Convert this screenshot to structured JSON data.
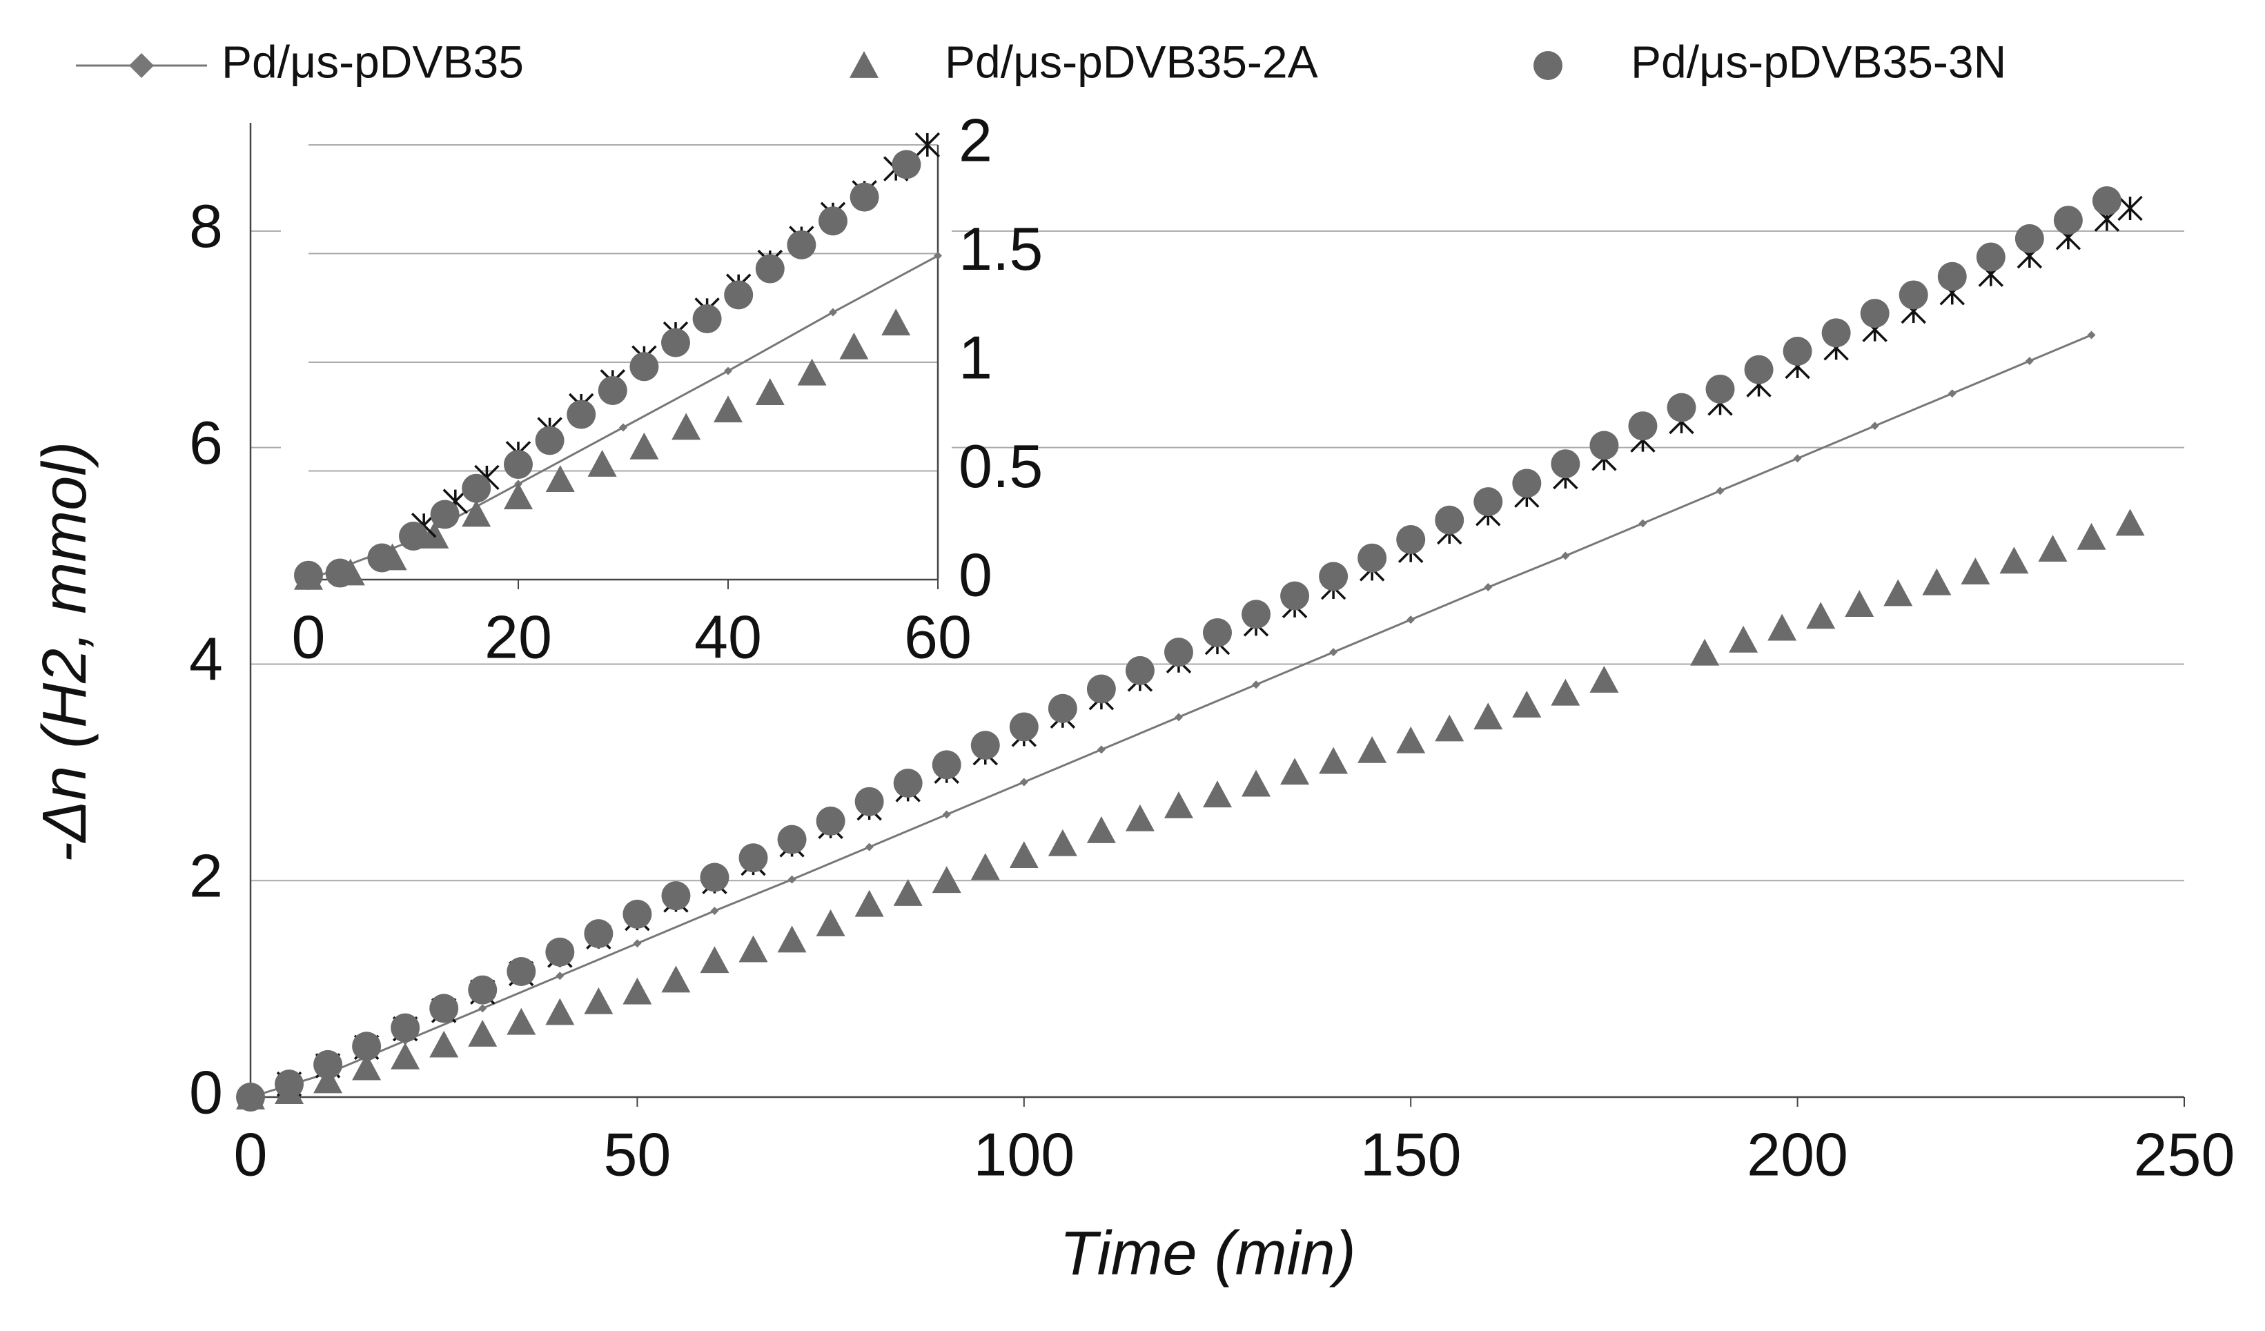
{
  "chart_data": [
    {
      "type": "scatter",
      "xlabel": "Time (min)",
      "ylabel": "-Δn (H2, mmol)",
      "xlim": [
        0,
        250
      ],
      "ylim": [
        0,
        9
      ],
      "xticks": [
        0,
        50,
        100,
        150,
        200,
        250
      ],
      "yticks": [
        0,
        2,
        4,
        6,
        8
      ],
      "grid": true,
      "y_side": "left",
      "legend": "top",
      "series": [
        {
          "name": "Pd/μs-pDVB35",
          "color": "#777777",
          "marker": "line",
          "x": [
            0,
            10,
            20,
            30,
            40,
            50,
            60,
            70,
            80,
            90,
            100,
            110,
            120,
            130,
            140,
            150,
            160,
            170,
            180,
            190,
            200,
            210,
            220,
            230,
            238
          ],
          "values": [
            0,
            0.22,
            0.52,
            0.82,
            1.12,
            1.42,
            1.72,
            2.01,
            2.31,
            2.61,
            2.91,
            3.21,
            3.51,
            3.81,
            4.11,
            4.41,
            4.71,
            5.0,
            5.3,
            5.6,
            5.9,
            6.2,
            6.5,
            6.8,
            7.04
          ]
        },
        {
          "name": "Pd/μs-pDVB35-2A",
          "color": "#6b6b6b",
          "marker": "triangle",
          "x": [
            0,
            5,
            10,
            15,
            20,
            25,
            30,
            35,
            40,
            45,
            50,
            55,
            60,
            65,
            70,
            75,
            80,
            85,
            90,
            95,
            100,
            105,
            110,
            115,
            120,
            125,
            130,
            135,
            140,
            145,
            150,
            155,
            160,
            165,
            170,
            175,
            188,
            193,
            198,
            203,
            208,
            213,
            218,
            223,
            228,
            233,
            238,
            243
          ],
          "values": [
            0,
            0.05,
            0.15,
            0.27,
            0.37,
            0.48,
            0.58,
            0.69,
            0.78,
            0.88,
            0.97,
            1.08,
            1.26,
            1.36,
            1.45,
            1.6,
            1.78,
            1.88,
            2.0,
            2.12,
            2.23,
            2.34,
            2.46,
            2.57,
            2.69,
            2.79,
            2.89,
            3.0,
            3.1,
            3.2,
            3.29,
            3.4,
            3.51,
            3.62,
            3.73,
            3.85,
            4.1,
            4.22,
            4.33,
            4.44,
            4.55,
            4.65,
            4.75,
            4.85,
            4.95,
            5.06,
            5.17,
            5.3
          ]
        },
        {
          "color": "#111111",
          "marker": "asterisk",
          "x": [
            5,
            10,
            15,
            20,
            25,
            30,
            35,
            40,
            45,
            50,
            55,
            60,
            65,
            70,
            75,
            80,
            85,
            90,
            95,
            100,
            105,
            110,
            115,
            120,
            125,
            130,
            135,
            140,
            145,
            150,
            155,
            160,
            165,
            170,
            175,
            180,
            185,
            190,
            195,
            200,
            205,
            210,
            215,
            220,
            225,
            230,
            235,
            240,
            243
          ],
          "values": [
            0.12,
            0.29,
            0.46,
            0.63,
            0.8,
            0.97,
            1.14,
            1.31,
            1.48,
            1.65,
            1.82,
            1.99,
            2.16,
            2.33,
            2.5,
            2.67,
            2.84,
            3.01,
            3.18,
            3.35,
            3.52,
            3.69,
            3.86,
            4.03,
            4.2,
            4.37,
            4.54,
            4.71,
            4.88,
            5.05,
            5.22,
            5.39,
            5.56,
            5.73,
            5.9,
            6.07,
            6.24,
            6.41,
            6.58,
            6.75,
            6.92,
            7.09,
            7.26,
            7.43,
            7.6,
            7.77,
            7.94,
            8.11,
            8.21
          ]
        },
        {
          "name": "Pd/μs-pDVB35-3N",
          "color": "#6b6b6b",
          "marker": "circle",
          "x": [
            0,
            5,
            10,
            15,
            20,
            25,
            30,
            35,
            40,
            45,
            50,
            55,
            60,
            65,
            70,
            75,
            80,
            85,
            90,
            95,
            100,
            105,
            110,
            115,
            120,
            125,
            130,
            135,
            140,
            145,
            150,
            155,
            160,
            165,
            170,
            175,
            180,
            185,
            190,
            195,
            200,
            205,
            210,
            215,
            220,
            225,
            230,
            235,
            240
          ],
          "values": [
            0,
            0.12,
            0.3,
            0.47,
            0.64,
            0.82,
            0.99,
            1.16,
            1.34,
            1.51,
            1.69,
            1.86,
            2.03,
            2.21,
            2.38,
            2.55,
            2.73,
            2.9,
            3.07,
            3.25,
            3.42,
            3.59,
            3.77,
            3.94,
            4.11,
            4.29,
            4.46,
            4.63,
            4.81,
            4.98,
            5.15,
            5.33,
            5.5,
            5.67,
            5.85,
            6.02,
            6.2,
            6.37,
            6.54,
            6.72,
            6.89,
            7.06,
            7.24,
            7.41,
            7.58,
            7.76,
            7.93,
            8.1,
            8.28
          ]
        }
      ]
    },
    {
      "type": "scatter",
      "xlim": [
        0,
        60
      ],
      "ylim": [
        0,
        2
      ],
      "xticks": [
        0,
        20,
        40,
        60
      ],
      "yticks": [
        0,
        0.5,
        1,
        1.5,
        2
      ],
      "grid": true,
      "y_side": "right",
      "series": [
        {
          "color": "#777777",
          "marker": "line",
          "x": [
            0,
            10,
            20,
            30,
            40,
            50,
            60
          ],
          "values": [
            0,
            0.18,
            0.44,
            0.7,
            0.96,
            1.23,
            1.49
          ]
        },
        {
          "color": "#6b6b6b",
          "marker": "triangle",
          "x": [
            0,
            4,
            8,
            12,
            16,
            20,
            24,
            28,
            32,
            36,
            40,
            44,
            48,
            52,
            56
          ],
          "values": [
            0.01,
            0.03,
            0.1,
            0.2,
            0.3,
            0.38,
            0.46,
            0.53,
            0.61,
            0.7,
            0.78,
            0.86,
            0.95,
            1.07,
            1.18
          ]
        },
        {
          "color": "#111111",
          "marker": "asterisk",
          "x": [
            11,
            14,
            17,
            20,
            23,
            26,
            29,
            32,
            35,
            38,
            41,
            44,
            47,
            50,
            53,
            56,
            59
          ],
          "values": [
            0.25,
            0.36,
            0.47,
            0.58,
            0.69,
            0.8,
            0.91,
            1.02,
            1.13,
            1.24,
            1.35,
            1.46,
            1.57,
            1.68,
            1.78,
            1.89,
            2.0
          ]
        },
        {
          "color": "#6b6b6b",
          "marker": "circle",
          "x": [
            0,
            3,
            7,
            10,
            13,
            16,
            20,
            23,
            26,
            29,
            32,
            35,
            38,
            41,
            44,
            47,
            50,
            53,
            57
          ],
          "values": [
            0.02,
            0.03,
            0.1,
            0.2,
            0.3,
            0.42,
            0.53,
            0.64,
            0.76,
            0.87,
            0.98,
            1.09,
            1.2,
            1.31,
            1.43,
            1.54,
            1.65,
            1.76,
            1.91
          ]
        }
      ]
    }
  ]
}
